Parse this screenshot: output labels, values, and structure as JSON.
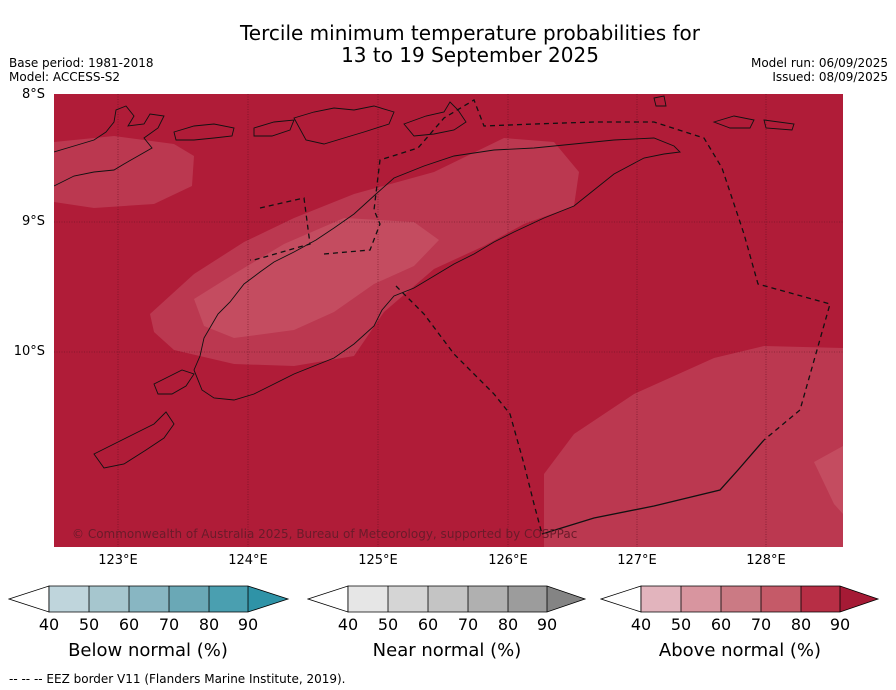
{
  "title_line1": "Tercile minimum temperature probabilities for",
  "title_line2": "13 to 19 September 2025",
  "base_period": "Base period: 1981-2018",
  "model": "Model: ACCESS-S2",
  "model_run": "Model run: 06/09/2025",
  "issued": "Issued: 08/09/2025",
  "lat_labels": [
    "8°S",
    "9°S",
    "10°S"
  ],
  "lon_labels": [
    "123°E",
    "124°E",
    "125°E",
    "126°E",
    "127°E",
    "128°E"
  ],
  "copyright": "© Commonwealth of Australia 2025, Bureau of Meteorology, supported by COSPPac",
  "colorbars": [
    {
      "label": "Below normal (%)",
      "ticks": [
        "40",
        "50",
        "60",
        "70",
        "80",
        "90"
      ],
      "colors": [
        "#ffffff",
        "#bfd5dc",
        "#a6c6ce",
        "#88b6c2",
        "#6aa8b6",
        "#4a9fb0",
        "#2f93a7"
      ]
    },
    {
      "label": "Near normal (%)",
      "ticks": [
        "40",
        "50",
        "60",
        "70",
        "80",
        "90"
      ],
      "colors": [
        "#ffffff",
        "#e6e6e6",
        "#d5d5d5",
        "#c4c4c4",
        "#b0b0b0",
        "#9c9c9c",
        "#848484"
      ]
    },
    {
      "label": "Above normal (%)",
      "ticks": [
        "40",
        "50",
        "60",
        "70",
        "80",
        "90"
      ],
      "colors": [
        "#ffffff",
        "#e2b4bd",
        "#d8959f",
        "#cb7a84",
        "#c55a68",
        "#b72e45",
        "#a51a35"
      ]
    }
  ],
  "footnote": "--  --  -- EEZ border V11 (Flanders Marine Institute, 2019).",
  "map_colors": {
    "above_90": "#b01c38",
    "above_80": "#bb3850",
    "above_70": "#c44c60"
  }
}
